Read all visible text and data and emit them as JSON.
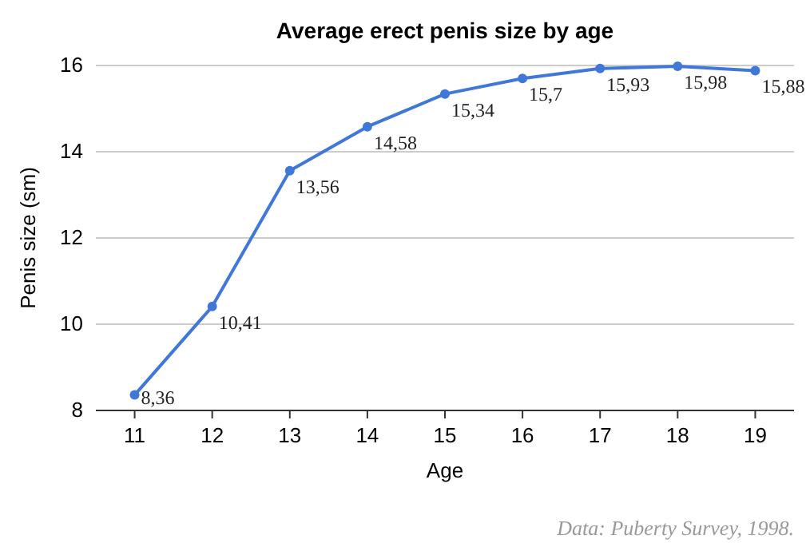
{
  "chart_data": {
    "type": "line",
    "title": "Average erect penis size by age",
    "xlabel": "Age",
    "ylabel": "Penis size (sm)",
    "categories": [
      "11",
      "12",
      "13",
      "14",
      "15",
      "16",
      "17",
      "18",
      "19"
    ],
    "series": [
      {
        "color": "#3f78d9",
        "values": [
          8.36,
          10.41,
          13.56,
          14.58,
          15.34,
          15.7,
          15.93,
          15.98,
          15.88
        ],
        "value_labels": [
          "8,36",
          "10,41",
          "13,56",
          "14,58",
          "15,34",
          "15,7",
          "15,93",
          "15,98",
          "15,88"
        ]
      }
    ],
    "ylim": [
      8,
      16
    ],
    "yticks": [
      8,
      10,
      12,
      14,
      16
    ],
    "grid": "y",
    "marker": "circle",
    "line_style": "solid",
    "annotations": [
      "Data: Puberty Survey, 1998."
    ]
  }
}
